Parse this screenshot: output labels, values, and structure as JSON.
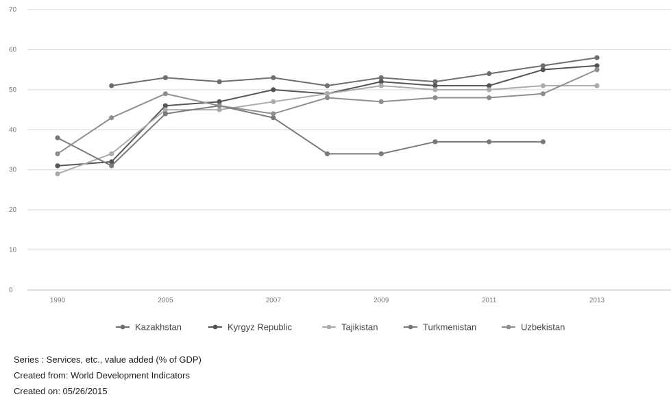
{
  "chart_data": {
    "type": "line",
    "x": [
      "1990",
      "2000",
      "2005",
      "2006",
      "2007",
      "2008",
      "2009",
      "2010",
      "2011",
      "2012",
      "2013"
    ],
    "x_tick_labels": [
      "1990",
      "2005",
      "2007",
      "2009",
      "2011",
      "2013"
    ],
    "ylim": [
      0,
      70
    ],
    "y_ticks": [
      0,
      10,
      20,
      30,
      40,
      50,
      60,
      70
    ],
    "grid": true,
    "legend_position": "bottom",
    "series": [
      {
        "name": "Kazakhstan",
        "color": "#6e6e6e",
        "values": [
          null,
          51,
          53,
          52,
          53,
          51,
          53,
          52,
          54,
          56,
          58
        ]
      },
      {
        "name": "Kyrgyz Republic",
        "color": "#555555",
        "values": [
          31,
          32,
          46,
          47,
          50,
          49,
          52,
          51,
          51,
          55,
          56
        ]
      },
      {
        "name": "Tajikistan",
        "color": "#ababab",
        "values": [
          29,
          34,
          45,
          45,
          47,
          49,
          51,
          50,
          50,
          51,
          51
        ]
      },
      {
        "name": "Turkmenistan",
        "color": "#7a7a7a",
        "values": [
          38,
          31,
          44,
          46,
          43,
          34,
          34,
          37,
          37,
          37,
          null
        ]
      },
      {
        "name": "Uzbekistan",
        "color": "#8e8e8e",
        "values": [
          34,
          43,
          49,
          46,
          44,
          48,
          47,
          48,
          48,
          49,
          55
        ]
      }
    ]
  },
  "notes": {
    "series_line": "Series : Services, etc., value added (% of GDP)",
    "source_line": "Created from: World Development Indicators",
    "date_line": "Created on: 05/26/2015"
  }
}
